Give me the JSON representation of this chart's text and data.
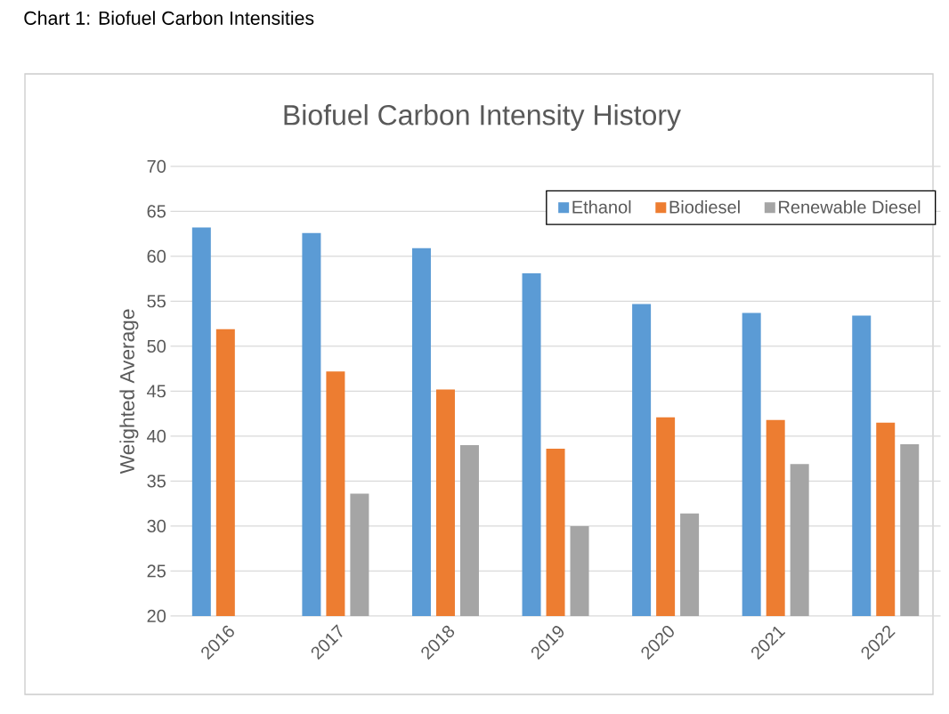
{
  "chart_data": {
    "type": "bar",
    "title": "Biofuel Carbon Intensity History",
    "ylabel": "Weighted Average",
    "annotations": [
      "Chart 1: Biofuel Carbon Intensities"
    ],
    "categories": [
      "2016",
      "2017",
      "2018",
      "2019",
      "2020",
      "2021",
      "2022"
    ],
    "series": [
      {
        "name": "Ethanol",
        "color": "#5b9bd5",
        "values": [
          63.2,
          62.6,
          60.9,
          58.1,
          54.7,
          53.7,
          53.4
        ]
      },
      {
        "name": "Biodiesel",
        "color": "#ed7d31",
        "values": [
          51.9,
          47.2,
          45.2,
          38.6,
          42.1,
          41.8,
          41.5
        ]
      },
      {
        "name": "Renewable Diesel",
        "color": "#a5a5a5",
        "values": [
          null,
          33.6,
          39.0,
          30.0,
          31.4,
          36.9,
          39.1
        ]
      }
    ],
    "ylim": [
      20,
      70
    ],
    "yticks": [
      20,
      25,
      30,
      35,
      40,
      45,
      50,
      55,
      60,
      65,
      70
    ],
    "grid": "y",
    "legend": "top right"
  }
}
